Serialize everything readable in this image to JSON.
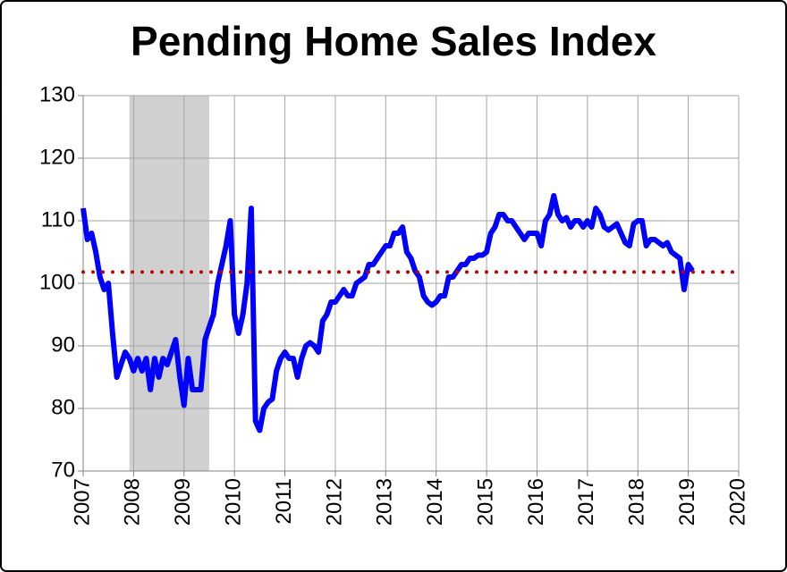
{
  "chart_data": {
    "type": "line",
    "title": "Pending Home Sales Index",
    "color": "#0000ff",
    "x": [
      2007,
      2007.083,
      2007.167,
      2007.25,
      2007.333,
      2007.417,
      2007.5,
      2007.583,
      2007.667,
      2007.75,
      2007.833,
      2007.917,
      2008,
      2008.083,
      2008.167,
      2008.25,
      2008.333,
      2008.417,
      2008.5,
      2008.583,
      2008.667,
      2008.75,
      2008.833,
      2008.917,
      2009,
      2009.083,
      2009.167,
      2009.25,
      2009.333,
      2009.417,
      2009.5,
      2009.583,
      2009.667,
      2009.75,
      2009.833,
      2009.917,
      2010,
      2010.083,
      2010.167,
      2010.25,
      2010.333,
      2010.417,
      2010.5,
      2010.583,
      2010.667,
      2010.75,
      2010.833,
      2010.917,
      2011,
      2011.083,
      2011.167,
      2011.25,
      2011.333,
      2011.417,
      2011.5,
      2011.583,
      2011.667,
      2011.75,
      2011.833,
      2011.917,
      2012,
      2012.083,
      2012.167,
      2012.25,
      2012.333,
      2012.417,
      2012.5,
      2012.583,
      2012.667,
      2012.75,
      2012.833,
      2012.917,
      2013,
      2013.083,
      2013.167,
      2013.25,
      2013.333,
      2013.417,
      2013.5,
      2013.583,
      2013.667,
      2013.75,
      2013.833,
      2013.917,
      2014,
      2014.083,
      2014.167,
      2014.25,
      2014.333,
      2014.417,
      2014.5,
      2014.583,
      2014.667,
      2014.75,
      2014.833,
      2014.917,
      2015,
      2015.083,
      2015.167,
      2015.25,
      2015.333,
      2015.417,
      2015.5,
      2015.583,
      2015.667,
      2015.75,
      2015.833,
      2015.917,
      2016,
      2016.083,
      2016.167,
      2016.25,
      2016.333,
      2016.417,
      2016.5,
      2016.583,
      2016.667,
      2016.75,
      2016.833,
      2016.917,
      2017,
      2017.083,
      2017.167,
      2017.25,
      2017.333,
      2017.417,
      2017.5,
      2017.583,
      2017.667,
      2017.75,
      2017.833,
      2017.917,
      2018,
      2018.083,
      2018.167,
      2018.25,
      2018.333,
      2018.417,
      2018.5,
      2018.583,
      2018.667,
      2018.75,
      2018.833,
      2018.917,
      2019,
      2019.083
    ],
    "values": [
      112,
      107,
      108,
      105,
      101,
      99,
      100,
      92,
      85,
      87,
      89,
      88,
      86,
      88,
      86,
      88,
      83,
      88,
      85,
      88,
      87,
      89,
      91,
      85,
      80.5,
      88,
      83,
      83,
      83,
      91,
      93,
      95,
      100,
      103,
      106,
      110,
      95,
      92,
      95,
      100,
      112,
      78,
      76.5,
      80,
      81,
      81.5,
      86,
      88,
      89,
      88,
      88,
      85,
      88,
      90,
      90.5,
      90,
      89,
      94,
      95,
      97,
      97,
      98,
      99,
      98,
      98,
      100,
      100.5,
      101,
      103,
      103,
      104,
      105,
      106,
      106,
      108,
      108,
      109,
      105,
      104,
      102,
      101,
      98,
      97,
      96.5,
      97,
      98,
      98,
      101,
      101,
      102,
      103,
      103,
      104,
      104,
      104.5,
      104.5,
      105,
      108,
      109,
      111,
      111,
      110,
      110,
      109,
      108,
      107,
      108,
      108,
      108,
      106,
      110,
      111,
      114,
      111,
      110,
      110.5,
      109,
      110,
      110,
      109,
      110,
      109,
      112,
      111,
      109,
      108.5,
      109,
      109.5,
      108,
      106.5,
      106,
      109.5,
      110,
      110,
      106,
      107,
      107,
      106.5,
      106,
      106.5,
      105,
      104.5,
      104,
      99,
      103,
      102
    ],
    "xlim": [
      2007,
      2020
    ],
    "xticks": [
      2007,
      2008,
      2009,
      2010,
      2011,
      2012,
      2013,
      2014,
      2015,
      2016,
      2017,
      2018,
      2019,
      2020
    ],
    "ylim": [
      70,
      130
    ],
    "yticks": [
      70,
      80,
      90,
      100,
      110,
      120,
      130
    ],
    "grid": true,
    "shaded_regions": [
      {
        "xlim": [
          2007.917,
          2009.5
        ],
        "color": "#d0d0d0"
      }
    ],
    "reference_line": {
      "value": 101.8,
      "color": "#c00000"
    }
  }
}
